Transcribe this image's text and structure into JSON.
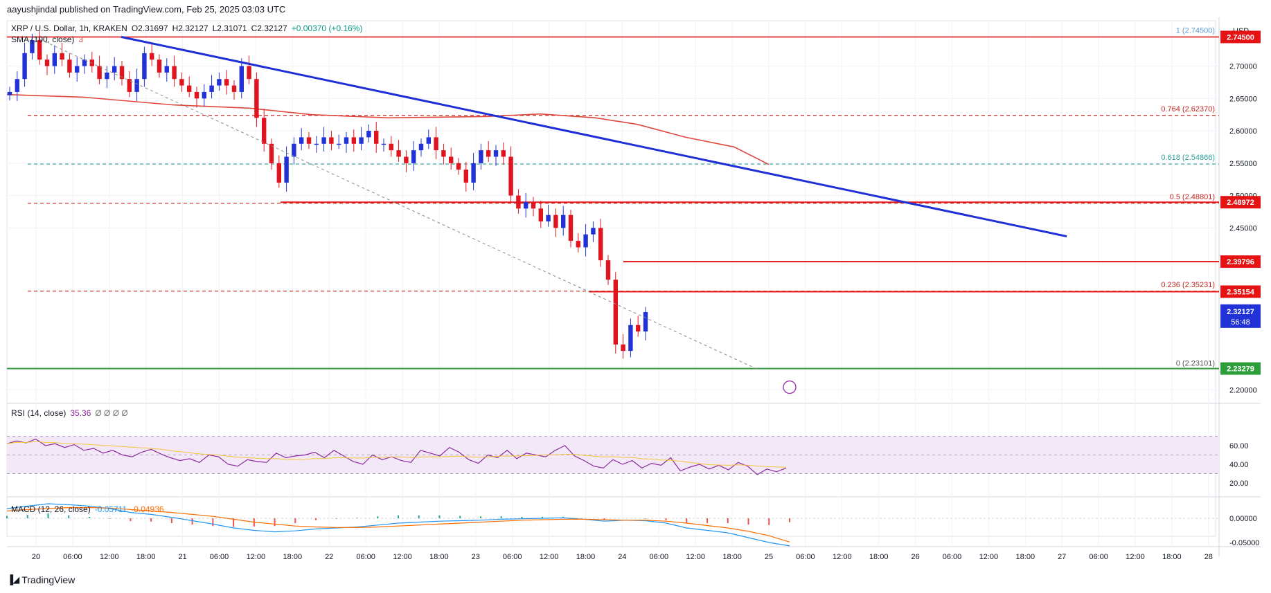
{
  "header": {
    "publisher": "aayushjindal published on TradingView.com, Feb 25, 2025 03:03 UTC",
    "symbol": "XRP / U.S. Dollar, 1h, KRAKEN",
    "open": "O2.31697",
    "high": "H2.32127",
    "low": "L2.31071",
    "close": "C2.32127",
    "change": "+0.00370 (+0.16%)",
    "sma_label": "SMA (100, close)",
    "sma_value": "3"
  },
  "price_axis": {
    "currency": "USD",
    "ticks": [
      "2.70000",
      "2.65000",
      "2.60000",
      "2.55000",
      "2.50000",
      "2.45000",
      "2.20000"
    ],
    "countdown": "56:48"
  },
  "rsi": {
    "label": "RSI (14, close)",
    "value": "35.36",
    "extra": "Ø Ø Ø Ø",
    "ticks": [
      "60.00",
      "40.00",
      "20.00"
    ]
  },
  "macd": {
    "label": "MACD (12, 26, close)",
    "macd_value": "-0.05711",
    "signal_value": "-0.04936",
    "ticks": [
      "0.00000",
      "-0.05000"
    ]
  },
  "time_axis": {
    "labels": [
      "20",
      "06:00",
      "12:00",
      "18:00",
      "21",
      "06:00",
      "12:00",
      "18:00",
      "22",
      "06:00",
      "12:00",
      "18:00",
      "23",
      "06:00",
      "12:00",
      "18:00",
      "24",
      "06:00",
      "12:00",
      "18:00",
      "25",
      "06:00",
      "12:00",
      "18:00",
      "26",
      "06:00",
      "12:00",
      "18:00",
      "27",
      "06:00",
      "12:00",
      "18:00",
      "28"
    ]
  },
  "footer": {
    "brand": "TradingView"
  },
  "colors": {
    "up": "#2133d6",
    "down": "#e0141e",
    "trendline": "#1e2fd6",
    "resistance": "#e51313",
    "sma": "#e0463a",
    "support": "#2e9e3a",
    "fib_red": "#c2271f",
    "fib_green": "#2aa198",
    "rsi": "#8d2aa1",
    "rsi_ma": "#f3c53a",
    "macd": "#2196f3",
    "signal": "#ff6d00"
  },
  "chart_data": {
    "type": "line",
    "title": "XRP / U.S. Dollar, 1h, KRAKEN",
    "ylabel": "USD",
    "ylim": [
      2.18,
      2.77
    ],
    "last_close": 2.32127,
    "fib_levels": [
      {
        "ratio": "1",
        "price": 2.745,
        "label": "1 (2.74500)"
      },
      {
        "ratio": "0.764",
        "price": 2.6237,
        "label": "0.764 (2.62370)"
      },
      {
        "ratio": "0.618",
        "price": 2.54866,
        "label": "0.618 (2.54866)"
      },
      {
        "ratio": "0.5",
        "price": 2.48801,
        "label": "0.5 (2.48801)"
      },
      {
        "ratio": "0.236",
        "price": 2.35231,
        "label": "0.236 (2.35231)"
      },
      {
        "ratio": "0",
        "price": 2.23101,
        "label": "0 (2.23101)"
      }
    ],
    "horizontal_levels": [
      {
        "price": 2.48972,
        "label": "2.48972"
      },
      {
        "price": 2.39796,
        "label": "2.39796"
      },
      {
        "price": 2.35154,
        "label": "2.35154"
      },
      {
        "price": 2.23279,
        "label": "2.23279"
      }
    ],
    "close_series": [
      2.66,
      2.68,
      2.72,
      2.74,
      2.71,
      2.7,
      2.72,
      2.71,
      2.69,
      2.7,
      2.71,
      2.7,
      2.68,
      2.69,
      2.7,
      2.68,
      2.66,
      2.68,
      2.72,
      2.71,
      2.69,
      2.7,
      2.68,
      2.67,
      2.66,
      2.65,
      2.66,
      2.67,
      2.68,
      2.67,
      2.66,
      2.7,
      2.68,
      2.62,
      2.58,
      2.55,
      2.52,
      2.56,
      2.58,
      2.59,
      2.58,
      2.58,
      2.59,
      2.58,
      2.58,
      2.59,
      2.58,
      2.59,
      2.6,
      2.58,
      2.58,
      2.57,
      2.56,
      2.55,
      2.57,
      2.58,
      2.59,
      2.57,
      2.56,
      2.55,
      2.54,
      2.52,
      2.55,
      2.57,
      2.56,
      2.57,
      2.56,
      2.5,
      2.48,
      2.49,
      2.48,
      2.46,
      2.47,
      2.45,
      2.47,
      2.43,
      2.42,
      2.44,
      2.45,
      2.4,
      2.37,
      2.27,
      2.26,
      2.3,
      2.29,
      2.32
    ]
  }
}
